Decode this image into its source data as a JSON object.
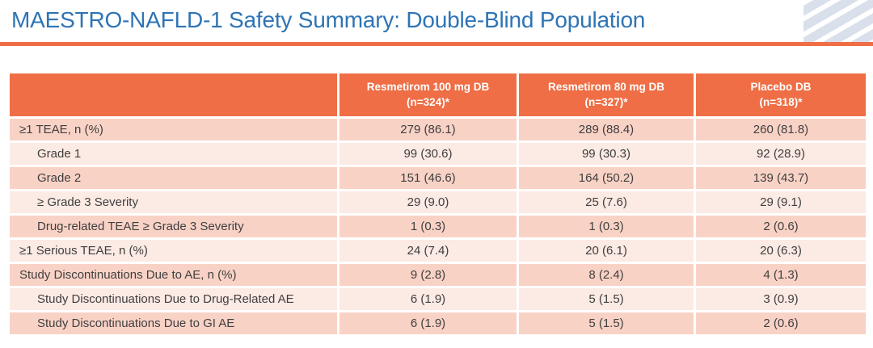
{
  "title": "MAESTRO-NAFLD-1 Safety Summary: Double-Blind Population",
  "colors": {
    "title_blue": "#2E74B5",
    "accent_orange": "#EF6E45",
    "row_band_dark": "#F9D2C6",
    "row_band_light": "#FCEAE4",
    "corner_graphic_blue": "#D9E0EB"
  },
  "table": {
    "columns": [
      {
        "line1": "Resmetirom 100 mg DB",
        "line2": "(n=324)*"
      },
      {
        "line1": "Resmetirom 80 mg DB",
        "line2": "(n=327)*"
      },
      {
        "line1": "Placebo DB",
        "line2": "(n=318)*"
      }
    ],
    "rows": [
      {
        "label": "≥1 TEAE, n (%)",
        "values": [
          "279 (86.1)",
          "289 (88.4)",
          "260 (81.8)"
        ]
      },
      {
        "label": "Grade 1",
        "values": [
          "99 (30.6)",
          "99 (30.3)",
          "92 (28.9)"
        ]
      },
      {
        "label": "Grade 2",
        "values": [
          "151 (46.6)",
          "164 (50.2)",
          "139 (43.7)"
        ]
      },
      {
        "label": "≥ Grade 3 Severity",
        "values": [
          "29 (9.0)",
          "25 (7.6)",
          "29 (9.1)"
        ]
      },
      {
        "label": "Drug-related TEAE ≥ Grade 3 Severity",
        "values": [
          "1 (0.3)",
          "1 (0.3)",
          "2 (0.6)"
        ]
      },
      {
        "label": "≥1 Serious TEAE, n (%)",
        "values": [
          "24 (7.4)",
          "20 (6.1)",
          "20 (6.3)"
        ]
      },
      {
        "label": "Study Discontinuations Due to AE, n (%)",
        "values": [
          "9 (2.8)",
          "8 (2.4)",
          "4 (1.3)"
        ]
      },
      {
        "label": "Study Discontinuations Due to Drug-Related AE",
        "values": [
          "6 (1.9)",
          "5 (1.5)",
          "3 (0.9)"
        ]
      },
      {
        "label": "Study Discontinuations Due to GI AE",
        "values": [
          "6 (1.9)",
          "5 (1.5)",
          "2 (0.6)"
        ]
      }
    ]
  }
}
